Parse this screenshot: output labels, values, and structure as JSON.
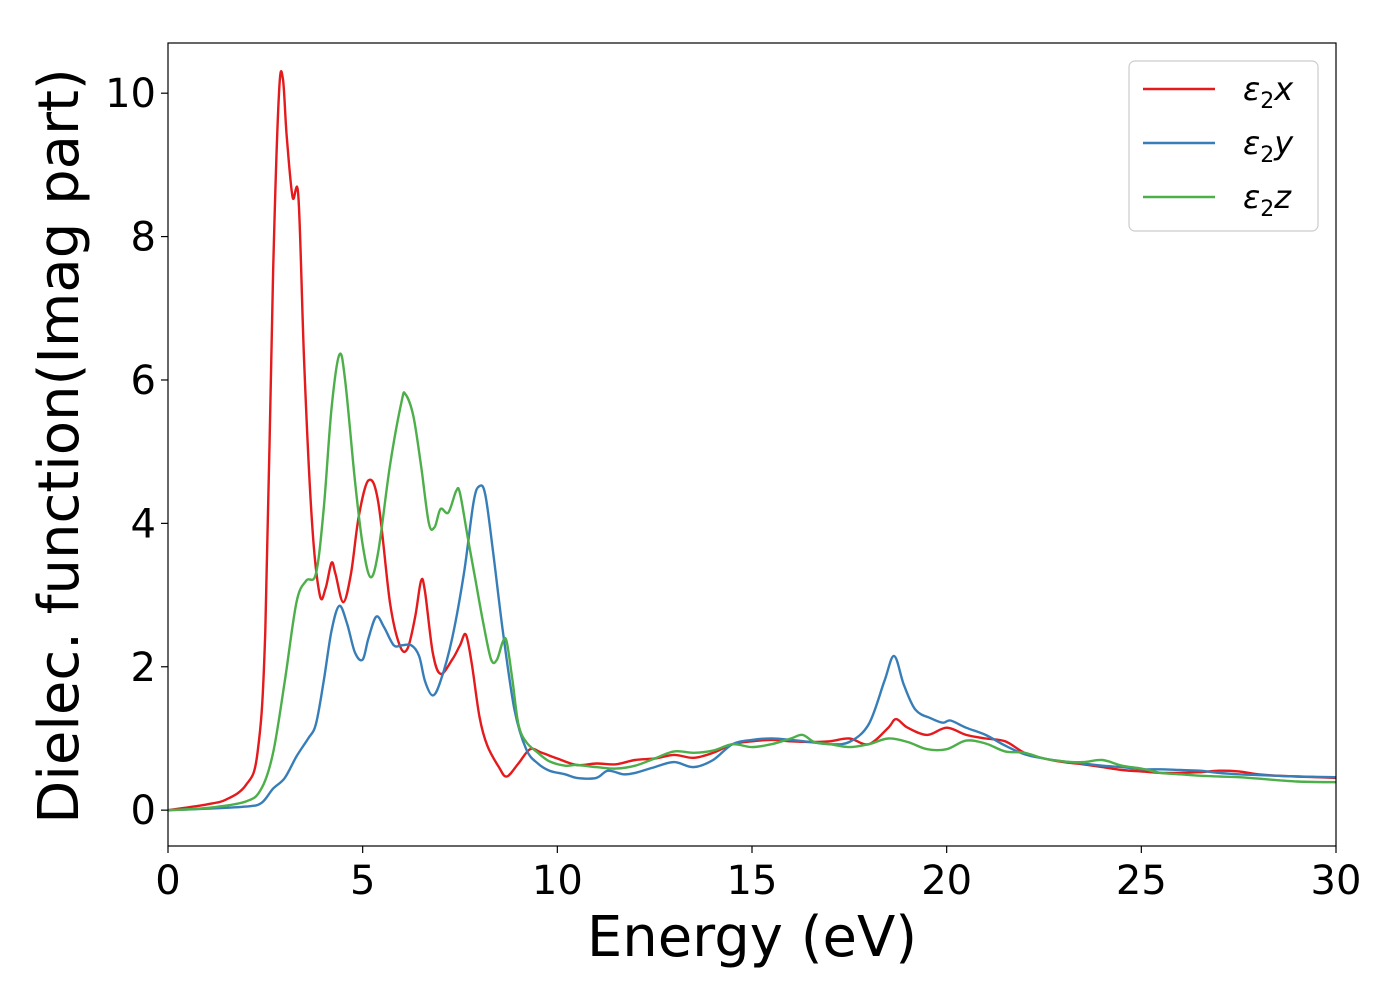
{
  "chart_data": {
    "type": "line",
    "title": "",
    "xlabel": "Energy (eV)",
    "ylabel": "Dielec. function(Imag part)",
    "xlim": [
      0,
      30
    ],
    "ylim": [
      -0.5,
      10.7
    ],
    "xticks": [
      0,
      5,
      10,
      15,
      20,
      25,
      30
    ],
    "yticks": [
      0,
      2,
      4,
      6,
      8,
      10
    ],
    "grid": false,
    "legend_position": "top-right",
    "series": [
      {
        "name": "ε2x",
        "legend_base": "ε",
        "legend_sub": "2",
        "legend_suffix": "x",
        "color": "#e41a1c",
        "points": [
          [
            0,
            0
          ],
          [
            1,
            0.08
          ],
          [
            1.5,
            0.15
          ],
          [
            2,
            0.35
          ],
          [
            2.3,
            0.8
          ],
          [
            2.5,
            2.5
          ],
          [
            2.7,
            7.5
          ],
          [
            2.85,
            10.0
          ],
          [
            2.95,
            10.2
          ],
          [
            3.05,
            9.4
          ],
          [
            3.2,
            8.55
          ],
          [
            3.35,
            8.55
          ],
          [
            3.5,
            6.2
          ],
          [
            3.7,
            4.0
          ],
          [
            3.9,
            3.0
          ],
          [
            4.05,
            3.1
          ],
          [
            4.2,
            3.45
          ],
          [
            4.3,
            3.3
          ],
          [
            4.5,
            2.9
          ],
          [
            4.7,
            3.3
          ],
          [
            4.9,
            4.1
          ],
          [
            5.15,
            4.6
          ],
          [
            5.4,
            4.3
          ],
          [
            5.7,
            2.9
          ],
          [
            5.95,
            2.3
          ],
          [
            6.15,
            2.25
          ],
          [
            6.35,
            2.7
          ],
          [
            6.5,
            3.2
          ],
          [
            6.6,
            3.05
          ],
          [
            6.8,
            2.2
          ],
          [
            7.0,
            1.9
          ],
          [
            7.3,
            2.1
          ],
          [
            7.5,
            2.3
          ],
          [
            7.65,
            2.45
          ],
          [
            7.8,
            2.05
          ],
          [
            8.0,
            1.3
          ],
          [
            8.2,
            0.9
          ],
          [
            8.5,
            0.6
          ],
          [
            8.7,
            0.47
          ],
          [
            9.0,
            0.65
          ],
          [
            9.3,
            0.85
          ],
          [
            9.6,
            0.8
          ],
          [
            10.0,
            0.72
          ],
          [
            10.5,
            0.63
          ],
          [
            11,
            0.65
          ],
          [
            11.5,
            0.64
          ],
          [
            12,
            0.7
          ],
          [
            12.5,
            0.72
          ],
          [
            13,
            0.77
          ],
          [
            13.5,
            0.73
          ],
          [
            14,
            0.8
          ],
          [
            14.5,
            0.92
          ],
          [
            15,
            0.96
          ],
          [
            15.5,
            0.98
          ],
          [
            16,
            0.96
          ],
          [
            16.5,
            0.95
          ],
          [
            17,
            0.96
          ],
          [
            17.5,
            1.0
          ],
          [
            18,
            0.92
          ],
          [
            18.5,
            1.15
          ],
          [
            18.7,
            1.27
          ],
          [
            19,
            1.15
          ],
          [
            19.5,
            1.05
          ],
          [
            20,
            1.15
          ],
          [
            20.5,
            1.05
          ],
          [
            21,
            1.0
          ],
          [
            21.5,
            0.96
          ],
          [
            22,
            0.8
          ],
          [
            22.5,
            0.72
          ],
          [
            23,
            0.67
          ],
          [
            23.5,
            0.64
          ],
          [
            24,
            0.6
          ],
          [
            24.5,
            0.56
          ],
          [
            25,
            0.54
          ],
          [
            25.5,
            0.52
          ],
          [
            26,
            0.52
          ],
          [
            26.5,
            0.53
          ],
          [
            27,
            0.55
          ],
          [
            27.5,
            0.54
          ],
          [
            28,
            0.5
          ],
          [
            28.5,
            0.48
          ],
          [
            29,
            0.47
          ],
          [
            29.5,
            0.46
          ],
          [
            30,
            0.45
          ]
        ]
      },
      {
        "name": "ε2y",
        "legend_base": "ε",
        "legend_sub": "2",
        "legend_suffix": "y",
        "color": "#377eb8",
        "points": [
          [
            0,
            0
          ],
          [
            1,
            0.02
          ],
          [
            2,
            0.05
          ],
          [
            2.4,
            0.1
          ],
          [
            2.7,
            0.3
          ],
          [
            3.0,
            0.45
          ],
          [
            3.3,
            0.75
          ],
          [
            3.6,
            1.0
          ],
          [
            3.8,
            1.2
          ],
          [
            4.0,
            1.8
          ],
          [
            4.2,
            2.5
          ],
          [
            4.4,
            2.85
          ],
          [
            4.6,
            2.6
          ],
          [
            4.8,
            2.2
          ],
          [
            5.0,
            2.1
          ],
          [
            5.15,
            2.4
          ],
          [
            5.35,
            2.7
          ],
          [
            5.55,
            2.55
          ],
          [
            5.8,
            2.3
          ],
          [
            6.0,
            2.3
          ],
          [
            6.25,
            2.3
          ],
          [
            6.45,
            2.15
          ],
          [
            6.6,
            1.8
          ],
          [
            6.8,
            1.6
          ],
          [
            7.0,
            1.8
          ],
          [
            7.3,
            2.4
          ],
          [
            7.6,
            3.3
          ],
          [
            7.85,
            4.3
          ],
          [
            8.0,
            4.52
          ],
          [
            8.15,
            4.4
          ],
          [
            8.35,
            3.6
          ],
          [
            8.6,
            2.5
          ],
          [
            8.9,
            1.4
          ],
          [
            9.2,
            0.85
          ],
          [
            9.5,
            0.65
          ],
          [
            9.8,
            0.55
          ],
          [
            10.2,
            0.5
          ],
          [
            10.5,
            0.45
          ],
          [
            11,
            0.45
          ],
          [
            11.3,
            0.55
          ],
          [
            11.7,
            0.5
          ],
          [
            12,
            0.52
          ],
          [
            12.5,
            0.6
          ],
          [
            13,
            0.67
          ],
          [
            13.5,
            0.6
          ],
          [
            14,
            0.7
          ],
          [
            14.5,
            0.92
          ],
          [
            15,
            0.98
          ],
          [
            15.5,
            1.0
          ],
          [
            16,
            0.98
          ],
          [
            16.5,
            0.95
          ],
          [
            17,
            0.92
          ],
          [
            17.5,
            0.95
          ],
          [
            18,
            1.2
          ],
          [
            18.4,
            1.8
          ],
          [
            18.65,
            2.15
          ],
          [
            18.9,
            1.75
          ],
          [
            19.2,
            1.4
          ],
          [
            19.6,
            1.28
          ],
          [
            19.9,
            1.22
          ],
          [
            20.1,
            1.25
          ],
          [
            20.5,
            1.15
          ],
          [
            21,
            1.05
          ],
          [
            21.5,
            0.9
          ],
          [
            22,
            0.78
          ],
          [
            22.5,
            0.72
          ],
          [
            23,
            0.68
          ],
          [
            23.5,
            0.65
          ],
          [
            24,
            0.62
          ],
          [
            24.5,
            0.6
          ],
          [
            25,
            0.57
          ],
          [
            25.5,
            0.57
          ],
          [
            26,
            0.56
          ],
          [
            26.5,
            0.55
          ],
          [
            27,
            0.52
          ],
          [
            27.5,
            0.5
          ],
          [
            28,
            0.49
          ],
          [
            29,
            0.47
          ],
          [
            30,
            0.46
          ]
        ]
      },
      {
        "name": "ε2z",
        "legend_base": "ε",
        "legend_sub": "2",
        "legend_suffix": "z",
        "color": "#4daf4a",
        "points": [
          [
            0,
            0
          ],
          [
            1,
            0.03
          ],
          [
            2,
            0.12
          ],
          [
            2.4,
            0.3
          ],
          [
            2.7,
            0.8
          ],
          [
            3.0,
            1.8
          ],
          [
            3.3,
            2.9
          ],
          [
            3.55,
            3.2
          ],
          [
            3.8,
            3.3
          ],
          [
            4.0,
            4.2
          ],
          [
            4.2,
            5.6
          ],
          [
            4.4,
            6.35
          ],
          [
            4.55,
            6.0
          ],
          [
            4.8,
            4.6
          ],
          [
            5.0,
            3.7
          ],
          [
            5.2,
            3.25
          ],
          [
            5.4,
            3.6
          ],
          [
            5.7,
            4.8
          ],
          [
            6.0,
            5.7
          ],
          [
            6.1,
            5.8
          ],
          [
            6.3,
            5.5
          ],
          [
            6.5,
            4.8
          ],
          [
            6.7,
            4.0
          ],
          [
            6.85,
            3.95
          ],
          [
            7.0,
            4.2
          ],
          [
            7.2,
            4.15
          ],
          [
            7.4,
            4.45
          ],
          [
            7.5,
            4.42
          ],
          [
            7.7,
            3.8
          ],
          [
            7.9,
            3.2
          ],
          [
            8.1,
            2.6
          ],
          [
            8.3,
            2.1
          ],
          [
            8.45,
            2.1
          ],
          [
            8.6,
            2.35
          ],
          [
            8.7,
            2.35
          ],
          [
            8.85,
            1.8
          ],
          [
            9.0,
            1.2
          ],
          [
            9.2,
            0.95
          ],
          [
            9.5,
            0.8
          ],
          [
            9.8,
            0.68
          ],
          [
            10.2,
            0.62
          ],
          [
            10.5,
            0.63
          ],
          [
            11,
            0.6
          ],
          [
            11.5,
            0.58
          ],
          [
            12,
            0.62
          ],
          [
            12.5,
            0.72
          ],
          [
            13,
            0.82
          ],
          [
            13.5,
            0.8
          ],
          [
            14,
            0.83
          ],
          [
            14.5,
            0.92
          ],
          [
            15,
            0.88
          ],
          [
            15.5,
            0.92
          ],
          [
            16,
            1.0
          ],
          [
            16.3,
            1.05
          ],
          [
            16.6,
            0.95
          ],
          [
            17,
            0.92
          ],
          [
            17.5,
            0.88
          ],
          [
            18,
            0.92
          ],
          [
            18.5,
            1.0
          ],
          [
            19,
            0.95
          ],
          [
            19.5,
            0.85
          ],
          [
            20,
            0.85
          ],
          [
            20.5,
            0.97
          ],
          [
            21,
            0.93
          ],
          [
            21.5,
            0.82
          ],
          [
            22,
            0.8
          ],
          [
            22.5,
            0.72
          ],
          [
            23,
            0.68
          ],
          [
            23.5,
            0.67
          ],
          [
            24,
            0.7
          ],
          [
            24.5,
            0.62
          ],
          [
            25,
            0.58
          ],
          [
            25.5,
            0.52
          ],
          [
            26,
            0.5
          ],
          [
            26.5,
            0.48
          ],
          [
            27,
            0.47
          ],
          [
            27.5,
            0.46
          ],
          [
            28,
            0.44
          ],
          [
            29,
            0.4
          ],
          [
            30,
            0.39
          ]
        ]
      }
    ]
  }
}
